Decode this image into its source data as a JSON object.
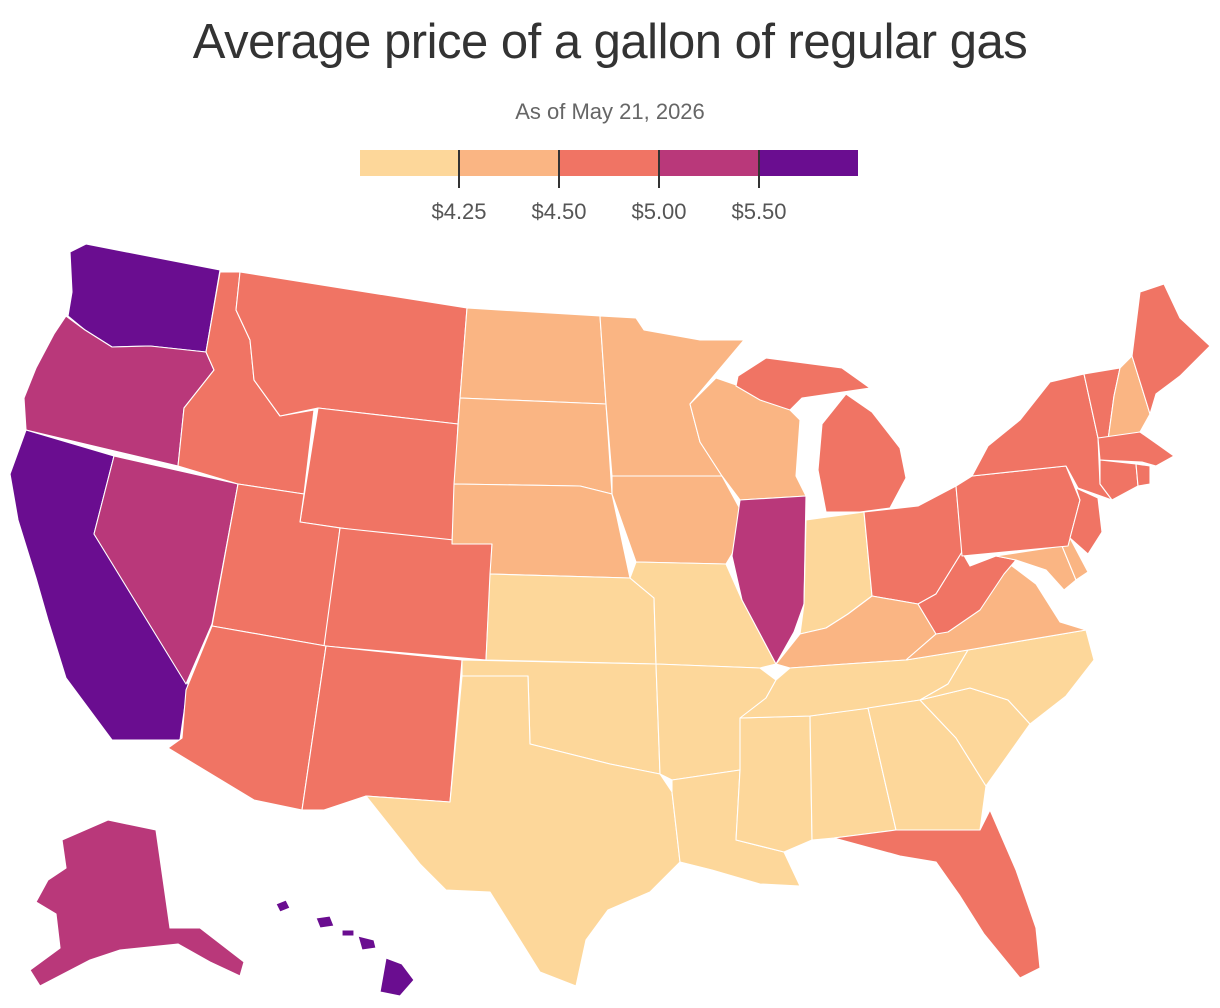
{
  "title": "Average price of a gallon of regular gas",
  "subtitle": "As of May 21, 2026",
  "legend": {
    "colors": [
      "#fdd79a",
      "#fab583",
      "#f07464",
      "#b9387a",
      "#6a0d90"
    ],
    "labels": [
      "$4.25",
      "$4.50",
      "$5.00",
      "$5.50"
    ]
  },
  "map_data": {
    "type": "choropleth",
    "region": "United States",
    "unit": "USD per gallon",
    "bins": [
      {
        "range": "< $4.25",
        "color": "#fdd79a"
      },
      {
        "range": "$4.25 – $4.50",
        "color": "#fab583"
      },
      {
        "range": "$4.50 – $5.00",
        "color": "#f07464"
      },
      {
        "range": "$5.00 – $5.50",
        "color": "#b9387a"
      },
      {
        "range": "> $5.50",
        "color": "#6a0d90"
      }
    ],
    "states": {
      "WA": 4,
      "CA": 4,
      "HI": 4,
      "OR": 3,
      "NV": 3,
      "AK": 3,
      "IL": 3,
      "ID": 2,
      "MT": 2,
      "WY": 2,
      "UT": 2,
      "CO": 2,
      "AZ": 2,
      "NM": 2,
      "MI": 2,
      "OH": 2,
      "PA": 2,
      "NY": 2,
      "VT": 2,
      "ME": 2,
      "MA": 2,
      "CT": 2,
      "RI": 2,
      "NJ": 2,
      "WV": 2,
      "FL": 2,
      "DC": 2,
      "ND": 1,
      "SD": 1,
      "NE": 1,
      "MN": 1,
      "IA": 1,
      "WI": 1,
      "KY": 1,
      "VA": 1,
      "MD": 1,
      "DE": 1,
      "NH": 1,
      "KS": 0,
      "OK": 0,
      "TX": 0,
      "MO": 0,
      "AR": 0,
      "LA": 0,
      "MS": 0,
      "AL": 0,
      "GA": 0,
      "SC": 0,
      "NC": 0,
      "TN": 0,
      "IN": 0
    }
  }
}
